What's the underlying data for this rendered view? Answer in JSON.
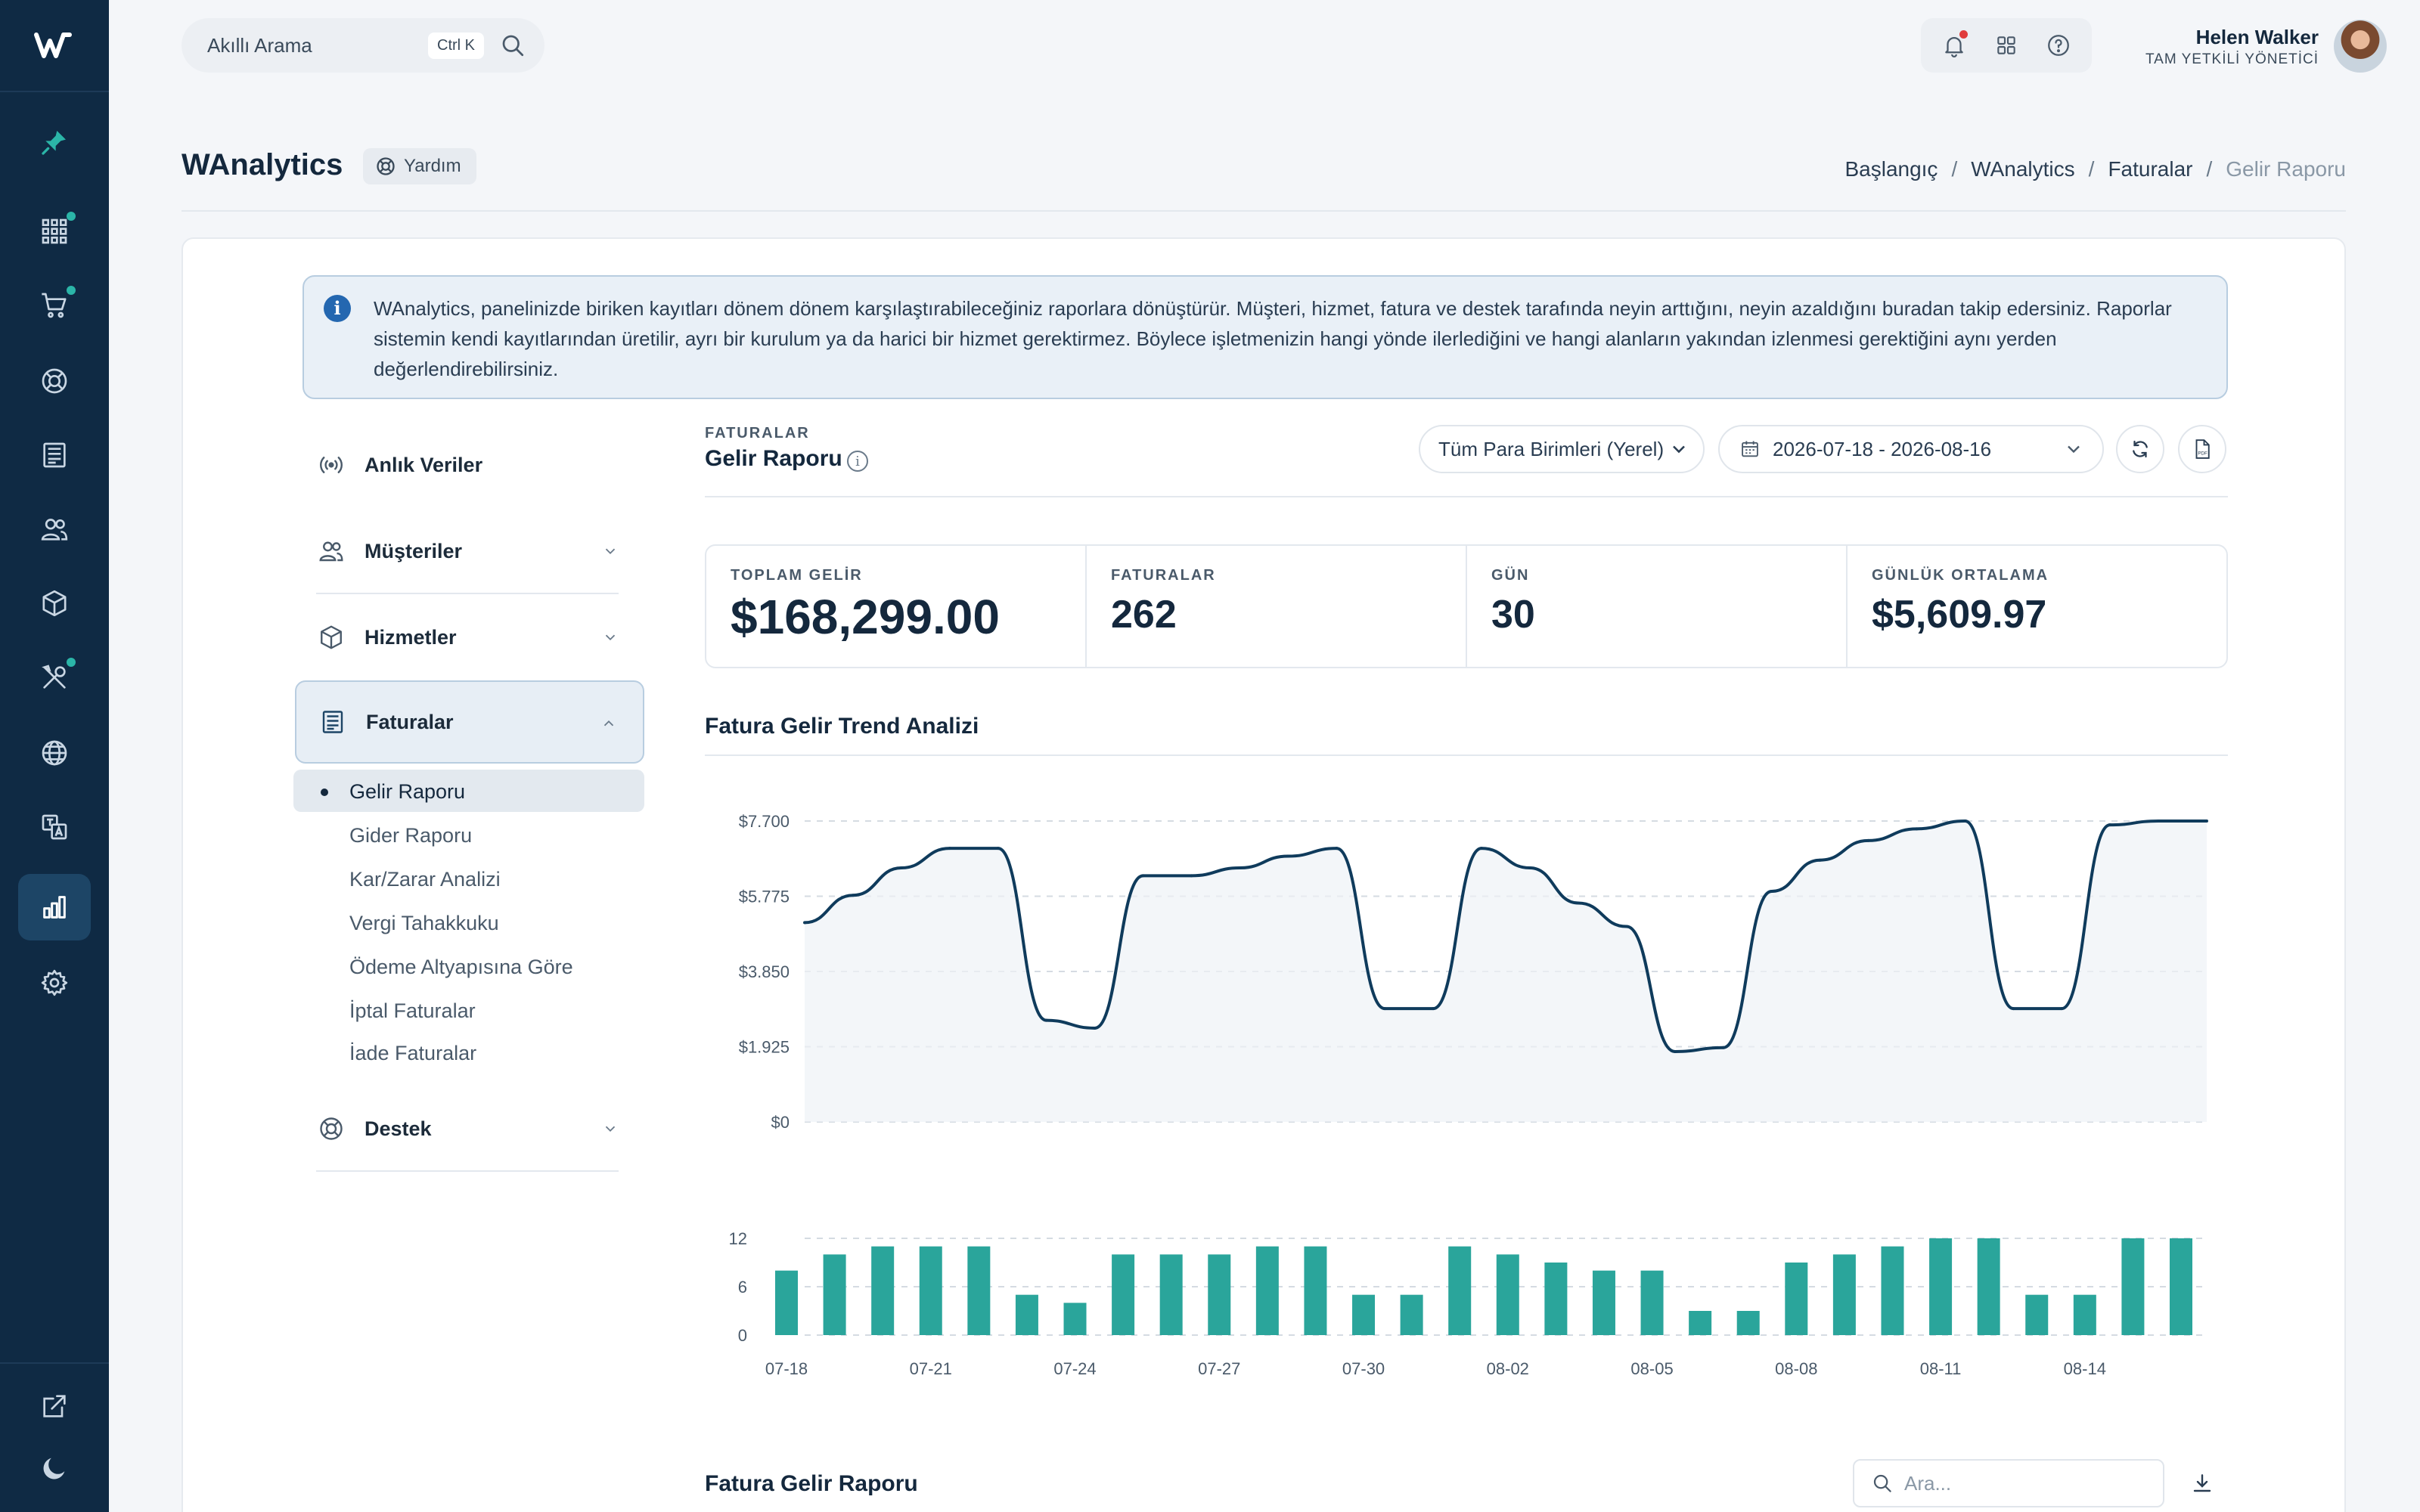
{
  "app": {
    "logo_letter": "W"
  },
  "rail": {
    "items": [
      {
        "icon": "pin-icon",
        "dot": false
      },
      {
        "icon": "grid-icon",
        "dot": true
      },
      {
        "icon": "cart-icon",
        "dot": true
      },
      {
        "icon": "lifebuoy-icon",
        "dot": false
      },
      {
        "icon": "invoice-icon",
        "dot": false
      },
      {
        "icon": "users-icon",
        "dot": false
      },
      {
        "icon": "box-icon",
        "dot": false
      },
      {
        "icon": "tools-icon",
        "dot": true
      },
      {
        "icon": "globe-icon",
        "dot": false
      },
      {
        "icon": "translate-icon",
        "dot": false
      },
      {
        "icon": "analytics-icon",
        "dot": false,
        "active": true
      },
      {
        "icon": "gear-icon",
        "dot": false
      }
    ],
    "bottom": [
      {
        "icon": "external-link-icon"
      },
      {
        "icon": "moon-icon"
      }
    ]
  },
  "topbar": {
    "search_placeholder": "Akıllı Arama",
    "shortcut": "Ctrl K",
    "user_name": "Helen Walker",
    "user_role": "TAM YETKİLİ YÖNETİCİ"
  },
  "page": {
    "title": "WAnalytics",
    "help_label": "Yardım",
    "breadcrumb": [
      "Başlangıç",
      "WAnalytics",
      "Faturalar",
      "Gelir Raporu"
    ]
  },
  "info": {
    "text": "WAnalytics, panelinizde biriken kayıtları dönem dönem karşılaştırabileceğiniz raporlara dönüştürür. Müşteri, hizmet, fatura ve destek tarafında neyin arttığını, neyin azaldığını buradan takip edersiniz. Raporlar sistemin kendi kayıtlarından üretilir, ayrı bir kurulum ya da harici bir hizmet gerektirmez. Böylece işletmenizin hangi yönde ilerlediğini ve hangi alanların yakından izlenmesi gerektiğini aynı yerden değerlendirebilirsiniz."
  },
  "subnav": {
    "live": "Anlık Veriler",
    "customers": "Müşteriler",
    "services": "Hizmetler",
    "invoices": "Faturalar",
    "support": "Destek",
    "invoice_children": [
      "Gelir Raporu",
      "Gider Raporu",
      "Kar/Zarar Analizi",
      "Vergi Tahakkuku",
      "Ödeme Altyapısına Göre",
      "İptal Faturalar",
      "İade Faturalar"
    ]
  },
  "report": {
    "eyebrow": "FATURALAR",
    "title": "Gelir Raporu",
    "currency": "Tüm Para Birimleri (Yerel)",
    "date_range": "2026-07-18 - 2026-08-16",
    "pdf_label": "PDF"
  },
  "stats": [
    {
      "label": "TOPLAM GELİR",
      "value": "$168,299.00"
    },
    {
      "label": "FATURALAR",
      "value": "262"
    },
    {
      "label": "GÜN",
      "value": "30"
    },
    {
      "label": "GÜNLÜK ORTALAMA",
      "value": "$5,609.97"
    }
  ],
  "chart_title": "Fatura Gelir Trend Analizi",
  "chart_data": {
    "type": "line",
    "x": [
      "07-18",
      "07-19",
      "07-20",
      "07-21",
      "07-22",
      "07-23",
      "07-24",
      "07-25",
      "07-26",
      "07-27",
      "07-28",
      "07-29",
      "07-30",
      "07-31",
      "08-01",
      "08-02",
      "08-03",
      "08-04",
      "08-05",
      "08-06",
      "08-07",
      "08-08",
      "08-09",
      "08-10",
      "08-11",
      "08-12",
      "08-13",
      "08-14",
      "08-15",
      "08-16"
    ],
    "revenue": [
      5100,
      5800,
      6500,
      7000,
      7000,
      2600,
      2400,
      6300,
      6300,
      6500,
      6800,
      7000,
      2900,
      2900,
      7000,
      6500,
      5600,
      5000,
      1800,
      1900,
      5900,
      6700,
      7200,
      7500,
      7700,
      2900,
      2900,
      7600,
      7700,
      7700
    ],
    "invoices": [
      8,
      10,
      11,
      11,
      11,
      5,
      4,
      10,
      10,
      10,
      11,
      11,
      5,
      5,
      11,
      10,
      9,
      8,
      8,
      3,
      3,
      9,
      10,
      11,
      12,
      12,
      5,
      5,
      12,
      12
    ],
    "revenue_ticks": [
      "$7.700",
      "$5.775",
      "$3.850",
      "$1.925",
      "$0"
    ],
    "revenue_ylim": [
      0,
      7700
    ],
    "invoice_ticks": [
      "12",
      "6",
      "0"
    ],
    "invoice_ylim": [
      0,
      12
    ],
    "x_tick_labels": [
      "07-18",
      "07-21",
      "07-24",
      "07-27",
      "07-30",
      "08-02",
      "08-05",
      "08-08",
      "08-11",
      "08-14"
    ],
    "colors": {
      "line": "#0f3b5c",
      "bar": "#2aa59b",
      "grid": "#d5dbe2"
    }
  },
  "table": {
    "title": "Fatura Gelir Raporu",
    "search_placeholder": "Ara..."
  }
}
